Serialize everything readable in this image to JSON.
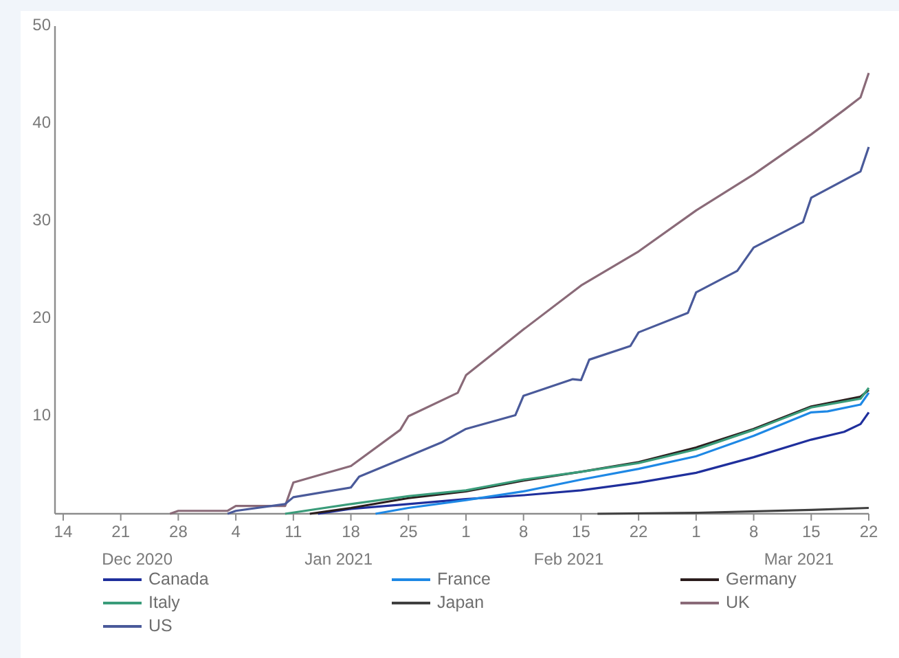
{
  "chart_data": {
    "type": "line",
    "xlim": [
      "2020-12-13",
      "2021-03-22"
    ],
    "ylim": [
      0,
      50
    ],
    "yticks": [
      10,
      20,
      30,
      40,
      50
    ],
    "xticks": [
      {
        "value": "2020-12-14",
        "label": "14"
      },
      {
        "value": "2020-12-21",
        "label": "21"
      },
      {
        "value": "2020-12-28",
        "label": "28"
      },
      {
        "value": "2021-01-04",
        "label": "4"
      },
      {
        "value": "2021-01-11",
        "label": "11"
      },
      {
        "value": "2021-01-18",
        "label": "18"
      },
      {
        "value": "2021-01-25",
        "label": "25"
      },
      {
        "value": "2021-02-01",
        "label": "1"
      },
      {
        "value": "2021-02-08",
        "label": "8"
      },
      {
        "value": "2021-02-15",
        "label": "15"
      },
      {
        "value": "2021-02-22",
        "label": "22"
      },
      {
        "value": "2021-03-01",
        "label": "1"
      },
      {
        "value": "2021-03-08",
        "label": "8"
      },
      {
        "value": "2021-03-15",
        "label": "15"
      },
      {
        "value": "2021-03-22",
        "label": "22"
      }
    ],
    "grid": false,
    "legend": "bottom",
    "line_style": "solid",
    "marker": "none",
    "annotations": [
      "Dec 2020",
      "Jan 2021",
      "Feb 2021",
      "Mar 2021"
    ],
    "series": [
      {
        "name": "Canada",
        "color": "#1f2f9c",
        "x": [
          "2021-01-14",
          "2021-01-18",
          "2021-01-25",
          "2021-02-01",
          "2021-02-08",
          "2021-02-15",
          "2021-02-22",
          "2021-03-01",
          "2021-03-08",
          "2021-03-15",
          "2021-03-19",
          "2021-03-21",
          "2021-03-22"
        ],
        "values": [
          0,
          0.5,
          1.0,
          1.5,
          1.9,
          2.4,
          3.2,
          4.2,
          5.8,
          7.6,
          8.4,
          9.2,
          10.4
        ]
      },
      {
        "name": "France",
        "color": "#1e88e5",
        "x": [
          "2021-01-21",
          "2021-01-25",
          "2021-02-01",
          "2021-02-08",
          "2021-02-15",
          "2021-02-22",
          "2021-03-01",
          "2021-03-08",
          "2021-03-15",
          "2021-03-17",
          "2021-03-21",
          "2021-03-22"
        ],
        "values": [
          0,
          0.6,
          1.4,
          2.3,
          3.5,
          4.6,
          5.9,
          8.0,
          10.4,
          10.5,
          11.2,
          12.4
        ]
      },
      {
        "name": "Germany",
        "color": "#2b1d1d",
        "x": [
          "2021-01-13",
          "2021-01-18",
          "2021-01-25",
          "2021-02-01",
          "2021-02-08",
          "2021-02-15",
          "2021-02-22",
          "2021-03-01",
          "2021-03-08",
          "2021-03-15",
          "2021-03-21",
          "2021-03-22"
        ],
        "values": [
          0,
          0.6,
          1.6,
          2.3,
          3.4,
          4.3,
          5.3,
          6.8,
          8.7,
          11.0,
          12.0,
          12.7
        ]
      },
      {
        "name": "Italy",
        "color": "#3a9c7a",
        "x": [
          "2021-01-10",
          "2021-01-18",
          "2021-01-25",
          "2021-02-01",
          "2021-02-08",
          "2021-02-15",
          "2021-02-22",
          "2021-03-01",
          "2021-03-08",
          "2021-03-15",
          "2021-03-21",
          "2021-03-22"
        ],
        "values": [
          0,
          1.0,
          1.8,
          2.4,
          3.5,
          4.3,
          5.2,
          6.6,
          8.6,
          10.9,
          11.8,
          12.9
        ]
      },
      {
        "name": "Japan",
        "color": "#404040",
        "x": [
          "2021-02-17",
          "2021-03-01",
          "2021-03-15",
          "2021-03-22"
        ],
        "values": [
          0,
          0.1,
          0.4,
          0.6
        ]
      },
      {
        "name": "UK",
        "color": "#8a6a78",
        "x": [
          "2020-12-27",
          "2020-12-28",
          "2021-01-03",
          "2021-01-04",
          "2021-01-10",
          "2021-01-11",
          "2021-01-18",
          "2021-01-24",
          "2021-01-25",
          "2021-01-31",
          "2021-02-01",
          "2021-02-08",
          "2021-02-15",
          "2021-02-22",
          "2021-03-01",
          "2021-03-08",
          "2021-03-15",
          "2021-03-19",
          "2021-03-21",
          "2021-03-22"
        ],
        "values": [
          0,
          0.3,
          0.3,
          0.8,
          0.8,
          3.2,
          4.9,
          8.6,
          10.0,
          12.4,
          14.2,
          18.9,
          23.4,
          26.9,
          31.1,
          34.8,
          38.9,
          41.4,
          42.7,
          45.2
        ]
      },
      {
        "name": "US",
        "color": "#4a5a9a",
        "x": [
          "2021-01-03",
          "2021-01-04",
          "2021-01-10",
          "2021-01-11",
          "2021-01-18",
          "2021-01-19",
          "2021-01-25",
          "2021-01-29",
          "2021-02-01",
          "2021-02-07",
          "2021-02-08",
          "2021-02-14",
          "2021-02-15",
          "2021-02-16",
          "2021-02-21",
          "2021-02-22",
          "2021-02-28",
          "2021-03-01",
          "2021-03-06",
          "2021-03-08",
          "2021-03-14",
          "2021-03-15",
          "2021-03-21",
          "2021-03-22"
        ],
        "values": [
          0,
          0.3,
          1.0,
          1.7,
          2.7,
          3.8,
          5.9,
          7.3,
          8.7,
          10.1,
          12.1,
          13.8,
          13.7,
          15.8,
          17.2,
          18.6,
          20.6,
          22.7,
          24.9,
          27.3,
          29.9,
          32.4,
          35.1,
          37.6
        ]
      }
    ]
  }
}
